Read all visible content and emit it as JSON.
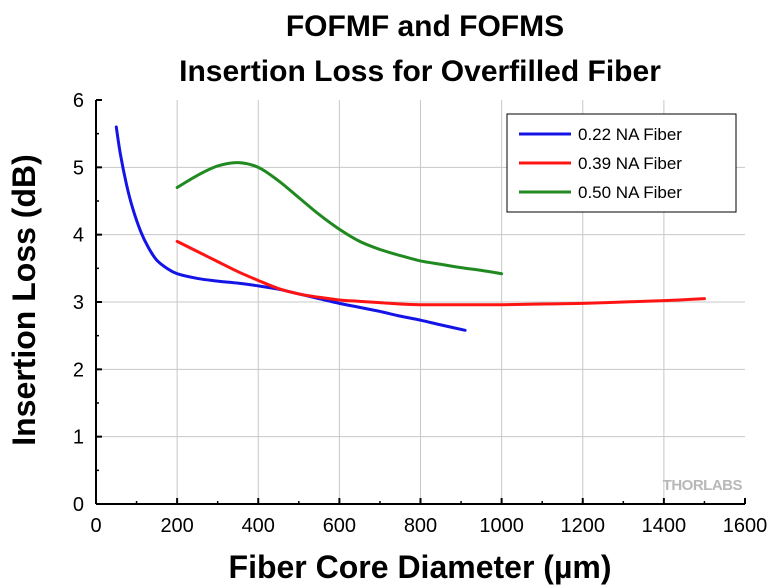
{
  "chart_data": {
    "type": "line",
    "title_line1": "FOFMF and FOFMS",
    "title_line2": "Insertion Loss for Overfilled Fiber",
    "xlabel": "Fiber Core Diameter (µm)",
    "ylabel": "Insertion Loss (dB)",
    "xlim": [
      0,
      1600
    ],
    "ylim": [
      0,
      6
    ],
    "xticks": [
      0,
      200,
      400,
      600,
      800,
      1000,
      1200,
      1400,
      1600
    ],
    "yticks": [
      0,
      1,
      2,
      3,
      4,
      5,
      6
    ],
    "grid": true,
    "legend_position": "top-right",
    "watermark": "THORLABS",
    "series": [
      {
        "name": "0.22 NA Fiber",
        "color": "#1414e6",
        "x": [
          50,
          60,
          75,
          90,
          110,
          130,
          150,
          175,
          200,
          250,
          300,
          350,
          400,
          450,
          500,
          550,
          600,
          650,
          700,
          750,
          800,
          850,
          910
        ],
        "y": [
          5.6,
          5.2,
          4.75,
          4.4,
          4.05,
          3.8,
          3.62,
          3.5,
          3.42,
          3.35,
          3.31,
          3.28,
          3.24,
          3.19,
          3.12,
          3.05,
          2.98,
          2.92,
          2.86,
          2.79,
          2.73,
          2.66,
          2.58
        ]
      },
      {
        "name": "0.39 NA Fiber",
        "color": "#ff1414",
        "x": [
          200,
          250,
          300,
          350,
          400,
          450,
          500,
          550,
          600,
          650,
          700,
          750,
          800,
          900,
          1000,
          1100,
          1200,
          1300,
          1400,
          1500
        ],
        "y": [
          3.9,
          3.75,
          3.6,
          3.45,
          3.32,
          3.2,
          3.12,
          3.07,
          3.03,
          3.01,
          2.99,
          2.97,
          2.96,
          2.96,
          2.96,
          2.97,
          2.98,
          3.0,
          3.02,
          3.05
        ]
      },
      {
        "name": "0.50 NA Fiber",
        "color": "#208a20",
        "x": [
          200,
          250,
          300,
          350,
          400,
          450,
          500,
          550,
          600,
          650,
          700,
          750,
          800,
          850,
          900,
          950,
          1000
        ],
        "y": [
          4.7,
          4.88,
          5.02,
          5.07,
          5.0,
          4.8,
          4.55,
          4.3,
          4.08,
          3.9,
          3.78,
          3.69,
          3.61,
          3.56,
          3.51,
          3.47,
          3.42
        ]
      }
    ]
  }
}
